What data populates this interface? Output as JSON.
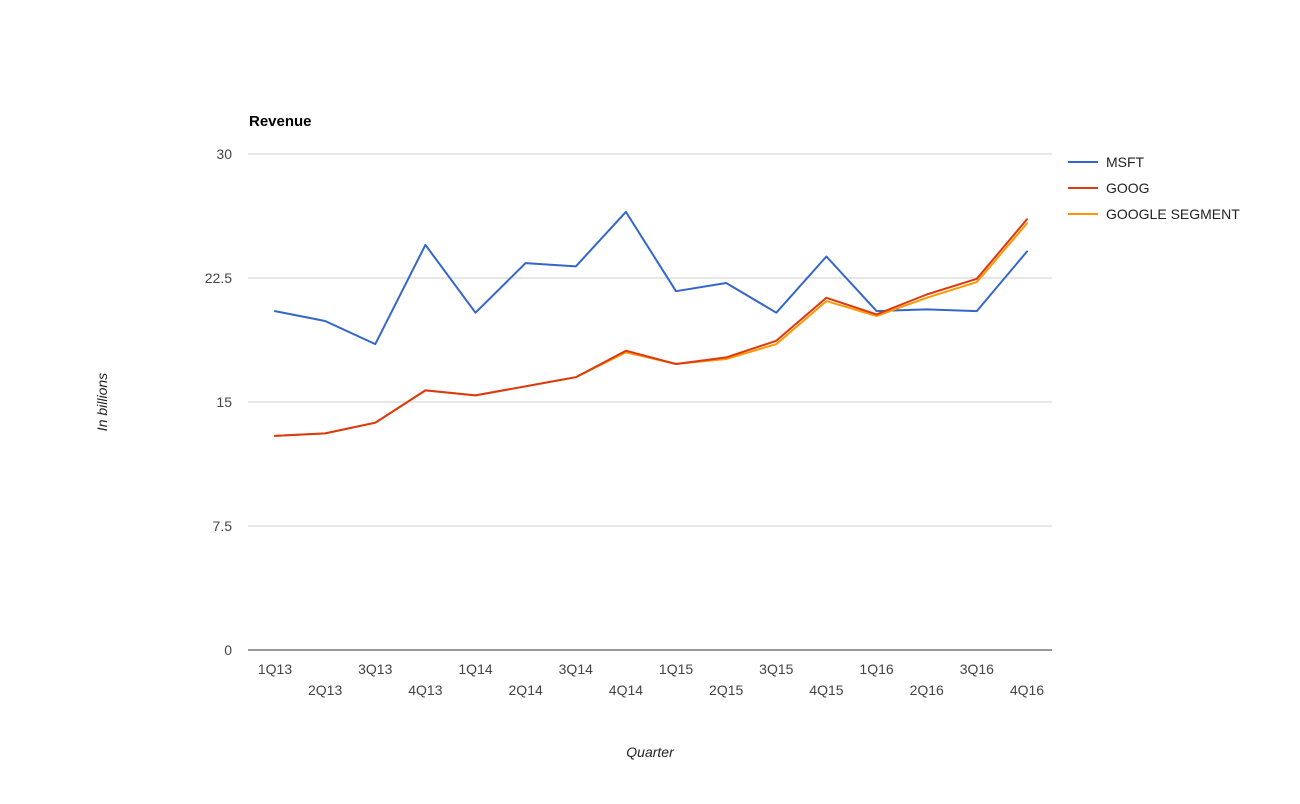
{
  "chart_data": {
    "type": "line",
    "title": "Revenue",
    "xlabel": "Quarter",
    "ylabel": "In billions",
    "ylim": [
      0,
      30
    ],
    "y_ticks": [
      "0",
      "7.5",
      "15",
      "22.5",
      "30"
    ],
    "grid": true,
    "legend_position": "right",
    "categories": [
      "1Q13",
      "2Q13",
      "3Q13",
      "4Q13",
      "1Q14",
      "2Q14",
      "3Q14",
      "4Q14",
      "1Q15",
      "2Q15",
      "3Q15",
      "4Q15",
      "1Q16",
      "2Q16",
      "3Q16",
      "4Q16"
    ],
    "series": [
      {
        "name": "MSFT",
        "color": "#3366cc",
        "values": [
          20.5,
          19.9,
          18.5,
          24.5,
          20.4,
          23.4,
          23.2,
          26.5,
          21.7,
          22.2,
          20.4,
          23.8,
          20.5,
          20.6,
          20.5,
          24.1
        ]
      },
      {
        "name": "GOOG",
        "color": "#dc3912",
        "values": [
          12.95,
          13.1,
          13.75,
          15.7,
          15.4,
          15.95,
          16.5,
          18.1,
          17.3,
          17.7,
          18.7,
          21.3,
          20.3,
          21.5,
          22.45,
          26.05
        ]
      },
      {
        "name": "GOOGLE SEGMENT",
        "color": "#ff9900",
        "values": [
          12.95,
          13.1,
          13.75,
          15.7,
          15.4,
          15.95,
          16.5,
          18.0,
          17.3,
          17.6,
          18.5,
          21.1,
          20.2,
          21.3,
          22.25,
          25.8
        ]
      }
    ]
  }
}
